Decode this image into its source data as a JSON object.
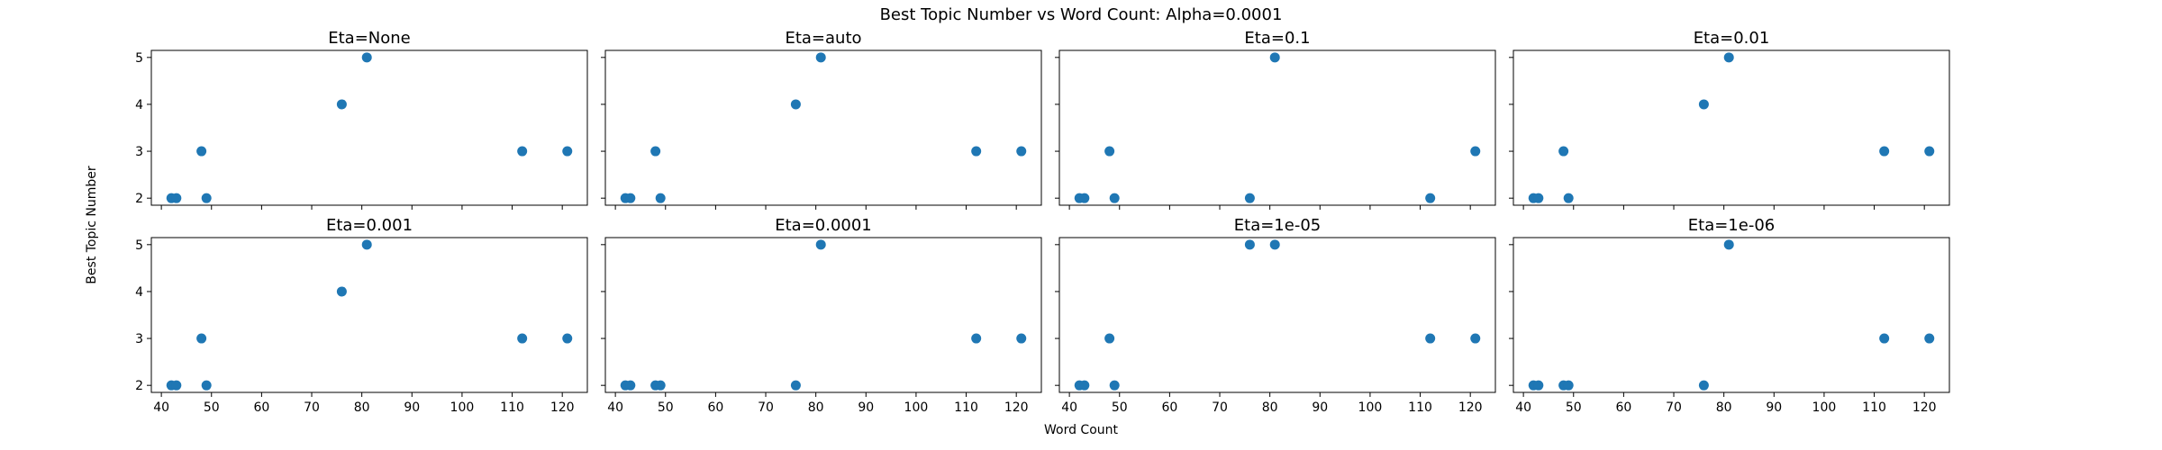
{
  "figure": {
    "title": "Best Topic Number vs Word Count: Alpha=0.0001",
    "xlabel": "Word Count",
    "ylabel": "Best Topic Number"
  },
  "chart_data": {
    "type": "scatter",
    "point_color": "#1f77b4",
    "xlim": [
      38,
      125
    ],
    "ylim": [
      1.85,
      5.15
    ],
    "xticks": [
      40,
      50,
      60,
      70,
      80,
      90,
      100,
      110,
      120
    ],
    "yticks": [
      2,
      3,
      4,
      5
    ],
    "panels": [
      {
        "title": "Eta=None",
        "x": [
          42,
          43,
          48,
          49,
          76,
          81,
          112,
          121
        ],
        "y": [
          2,
          2,
          3,
          2,
          4,
          5,
          3,
          3
        ]
      },
      {
        "title": "Eta=auto",
        "x": [
          42,
          43,
          48,
          49,
          76,
          81,
          112,
          121
        ],
        "y": [
          2,
          2,
          3,
          2,
          4,
          5,
          3,
          3
        ]
      },
      {
        "title": "Eta=0.1",
        "x": [
          42,
          43,
          48,
          49,
          76,
          81,
          112,
          121
        ],
        "y": [
          2,
          2,
          3,
          2,
          2,
          5,
          2,
          3
        ]
      },
      {
        "title": "Eta=0.01",
        "x": [
          42,
          43,
          48,
          49,
          76,
          81,
          112,
          121
        ],
        "y": [
          2,
          2,
          3,
          2,
          4,
          5,
          3,
          3
        ]
      },
      {
        "title": "Eta=0.001",
        "x": [
          42,
          43,
          48,
          49,
          76,
          81,
          112,
          121
        ],
        "y": [
          2,
          2,
          3,
          2,
          4,
          5,
          3,
          3
        ]
      },
      {
        "title": "Eta=0.0001",
        "x": [
          42,
          43,
          48,
          49,
          76,
          81,
          112,
          121
        ],
        "y": [
          2,
          2,
          2,
          2,
          2,
          5,
          3,
          3
        ]
      },
      {
        "title": "Eta=1e-05",
        "x": [
          42,
          43,
          48,
          49,
          76,
          81,
          112,
          121
        ],
        "y": [
          2,
          2,
          3,
          2,
          5,
          5,
          3,
          3
        ]
      },
      {
        "title": "Eta=1e-06",
        "x": [
          42,
          43,
          48,
          49,
          76,
          81,
          112,
          121
        ],
        "y": [
          2,
          2,
          2,
          2,
          2,
          5,
          3,
          3
        ]
      }
    ]
  }
}
